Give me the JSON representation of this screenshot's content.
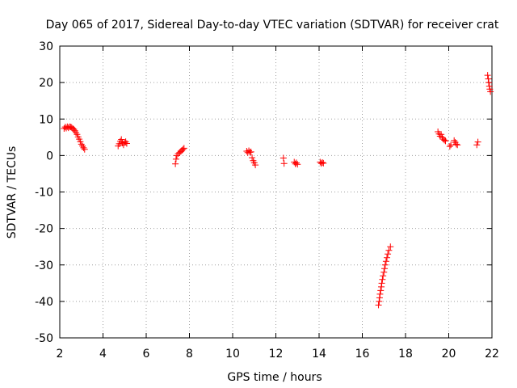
{
  "chart_data": {
    "type": "scatter",
    "title": "Day 065 of 2017, Sidereal Day-to-day VTEC variation (SDTVAR) for receiver crat",
    "xlabel": "GPS time / hours",
    "ylabel": "SDTVAR / TECUs",
    "xlim": [
      2,
      22
    ],
    "ylim": [
      -50,
      30
    ],
    "x_ticks": [
      "2",
      "4",
      "6",
      "8",
      "10",
      "12",
      "14",
      "16",
      "18",
      "20",
      "22"
    ],
    "y_ticks": [
      "30",
      "20",
      "10",
      "0",
      "-10",
      "-20",
      "-30",
      "-40",
      "-50"
    ],
    "grid": true,
    "marker": "plus",
    "color": "#ff0000",
    "series": [
      {
        "points": [
          [
            2.2,
            7.4
          ],
          [
            2.25,
            7.8
          ],
          [
            2.3,
            7.5
          ],
          [
            2.35,
            7.9
          ],
          [
            2.4,
            7.6
          ],
          [
            2.45,
            7.9
          ],
          [
            2.5,
            7.8
          ],
          [
            2.55,
            7.7
          ],
          [
            2.6,
            7.4
          ],
          [
            2.65,
            7.2
          ],
          [
            2.7,
            6.8
          ],
          [
            2.75,
            6.3
          ],
          [
            2.8,
            5.8
          ],
          [
            2.85,
            5.1
          ],
          [
            2.9,
            4.5
          ],
          [
            2.95,
            3.8
          ],
          [
            3.0,
            3.1
          ],
          [
            3.05,
            2.6
          ],
          [
            3.1,
            2.1
          ],
          [
            3.15,
            1.7
          ],
          [
            4.7,
            2.6
          ],
          [
            4.75,
            3.2
          ],
          [
            4.8,
            3.9
          ],
          [
            4.85,
            4.4
          ],
          [
            4.9,
            3.4
          ],
          [
            4.95,
            2.9
          ],
          [
            5.0,
            3.6
          ],
          [
            5.05,
            3.8
          ],
          [
            5.1,
            3.3
          ],
          [
            7.35,
            -2.3
          ],
          [
            7.38,
            -1.0
          ],
          [
            7.42,
            0.0
          ],
          [
            7.48,
            0.5
          ],
          [
            7.55,
            0.8
          ],
          [
            7.6,
            1.1
          ],
          [
            7.65,
            1.4
          ],
          [
            7.7,
            1.7
          ],
          [
            7.75,
            2.0
          ],
          [
            10.65,
            1.2
          ],
          [
            10.7,
            0.8
          ],
          [
            10.75,
            1.3
          ],
          [
            10.8,
            0.9
          ],
          [
            10.85,
            1.0
          ],
          [
            10.9,
            -0.6
          ],
          [
            10.95,
            -1.4
          ],
          [
            11.0,
            -2.0
          ],
          [
            11.05,
            -2.6
          ],
          [
            12.35,
            -0.7
          ],
          [
            12.38,
            -2.2
          ],
          [
            12.85,
            -1.8
          ],
          [
            12.9,
            -2.3
          ],
          [
            12.95,
            -2.0
          ],
          [
            13.0,
            -2.4
          ],
          [
            14.05,
            -1.8
          ],
          [
            14.1,
            -2.2
          ],
          [
            14.15,
            -1.9
          ],
          [
            14.2,
            -2.1
          ],
          [
            16.75,
            -41.0
          ],
          [
            16.78,
            -40.0
          ],
          [
            16.8,
            -39.0
          ],
          [
            16.82,
            -38.0
          ],
          [
            16.85,
            -37.0
          ],
          [
            16.88,
            -36.0
          ],
          [
            16.9,
            -35.0
          ],
          [
            16.93,
            -34.0
          ],
          [
            16.96,
            -33.0
          ],
          [
            17.0,
            -32.0
          ],
          [
            17.03,
            -31.0
          ],
          [
            17.06,
            -30.0
          ],
          [
            17.1,
            -29.0
          ],
          [
            17.14,
            -28.0
          ],
          [
            17.18,
            -27.0
          ],
          [
            17.23,
            -26.0
          ],
          [
            17.3,
            -25.0
          ],
          [
            19.5,
            6.5
          ],
          [
            19.55,
            5.9
          ],
          [
            19.6,
            5.3
          ],
          [
            19.65,
            5.8
          ],
          [
            19.7,
            4.9
          ],
          [
            19.75,
            4.5
          ],
          [
            19.8,
            4.2
          ],
          [
            19.85,
            4.0
          ],
          [
            20.05,
            2.5
          ],
          [
            20.1,
            2.9
          ],
          [
            20.25,
            4.1
          ],
          [
            20.3,
            3.6
          ],
          [
            20.35,
            3.1
          ],
          [
            20.4,
            2.9
          ],
          [
            21.3,
            2.9
          ],
          [
            21.35,
            3.7
          ],
          [
            21.8,
            22.0
          ],
          [
            21.83,
            21.0
          ],
          [
            21.85,
            20.0
          ],
          [
            21.88,
            19.0
          ],
          [
            21.9,
            18.2
          ],
          [
            21.93,
            17.5
          ]
        ]
      }
    ]
  }
}
